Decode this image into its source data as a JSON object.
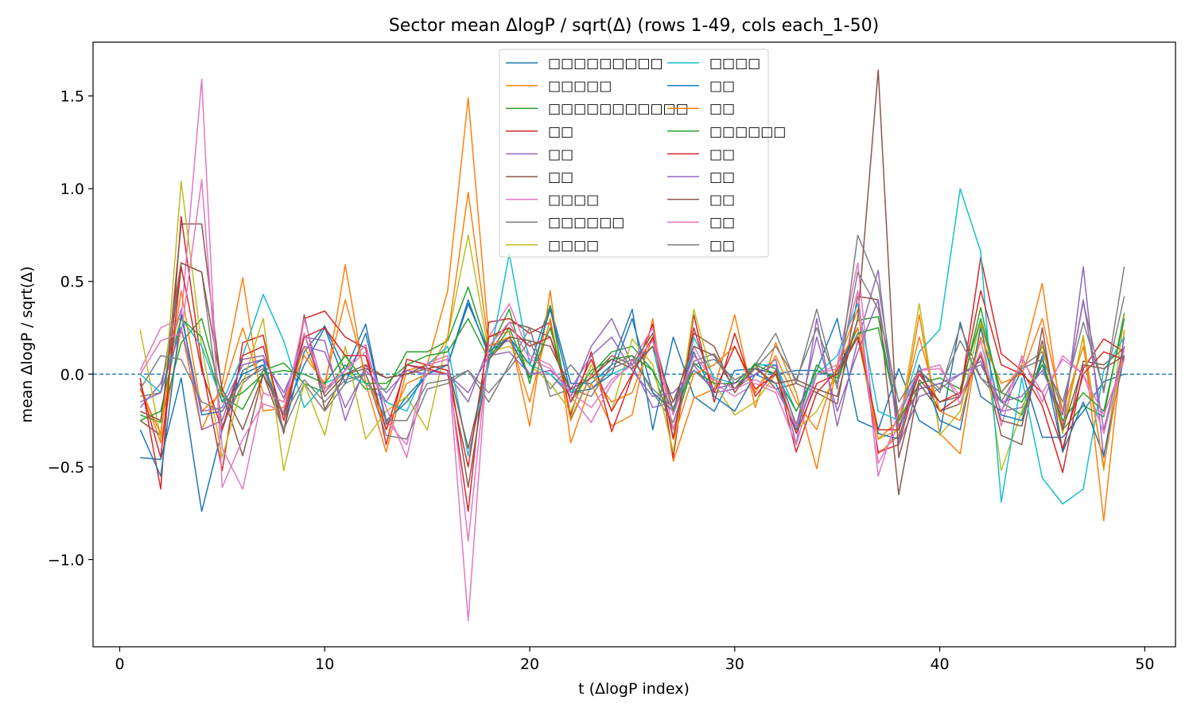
{
  "chart_data": {
    "type": "line",
    "title": "Sector mean ΔlogP / sqrt(Δ) (rows 1-49, cols each_1-50)",
    "xlabel": "t (ΔlogP index)",
    "ylabel": "mean ΔlogP / sqrt(Δ)",
    "xlim": [
      -1.3,
      51.5
    ],
    "ylim": [
      -1.47,
      1.79
    ],
    "xticks": [
      0,
      10,
      20,
      30,
      40,
      50
    ],
    "yticks": [
      -1.0,
      -0.5,
      0.0,
      0.5,
      1.0,
      1.5
    ],
    "ytick_labels": [
      "−1.0",
      "−0.5",
      "0.0",
      "0.5",
      "1.0",
      "1.5"
    ],
    "grid": false,
    "zero_line": true,
    "legend_placement": "top-center",
    "legend_columns": 2,
    "x": [
      1,
      2,
      3,
      4,
      5,
      6,
      7,
      8,
      9,
      10,
      11,
      12,
      13,
      14,
      15,
      16,
      17,
      18,
      19,
      20,
      21,
      22,
      23,
      24,
      25,
      26,
      27,
      28,
      29,
      30,
      31,
      32,
      33,
      34,
      35,
      36,
      37,
      38,
      39,
      40,
      41,
      42,
      43,
      44,
      45,
      46,
      47,
      48,
      49
    ],
    "series": [
      {
        "name": "□□□□□□□□□",
        "color": "#1f77b4",
        "values": [
          -0.45,
          -0.46,
          -0.02,
          -0.74,
          -0.3,
          0.02,
          0.08,
          -0.3,
          0.12,
          0.26,
          0.02,
          0.27,
          -0.27,
          -0.12,
          0.0,
          0.05,
          0.4,
          0.1,
          0.2,
          0.05,
          0.37,
          -0.05,
          -0.05,
          0.05,
          0.35,
          -0.3,
          0.2,
          -0.12,
          -0.2,
          0.02,
          0.03,
          0.0,
          0.02,
          0.02,
          0.3,
          -0.25,
          -0.3,
          0.03,
          -0.25,
          -0.32,
          0.28,
          -0.12,
          -0.2,
          0.02,
          -0.34,
          -0.34,
          -0.2,
          -0.04,
          0.0
        ]
      },
      {
        "name": "□□□□□",
        "color": "#ff7f0e",
        "values": [
          -0.05,
          -0.37,
          0.25,
          -0.3,
          -0.05,
          0.52,
          -0.2,
          -0.18,
          0.15,
          -0.08,
          0.59,
          -0.05,
          -0.42,
          0.02,
          0.05,
          0.45,
          1.49,
          0.2,
          0.23,
          -0.28,
          0.45,
          -0.37,
          -0.05,
          -0.28,
          -0.22,
          0.3,
          -0.47,
          -0.13,
          -0.08,
          0.32,
          -0.18,
          0.17,
          -0.1,
          -0.51,
          0.05,
          0.35,
          -0.43,
          -0.33,
          0.32,
          -0.32,
          -0.43,
          0.27,
          -0.1,
          0.05,
          0.49,
          -0.28,
          0.2,
          -0.79,
          0.24
        ]
      },
      {
        "name": "□□□□□□□□□□□",
        "color": "#2ca02c",
        "values": [
          -0.22,
          -0.26,
          0.17,
          0.3,
          -0.12,
          -0.19,
          0.02,
          0.06,
          -0.05,
          -0.1,
          0.05,
          -0.08,
          -0.08,
          0.12,
          0.12,
          0.18,
          0.47,
          0.12,
          0.35,
          -0.05,
          0.37,
          -0.24,
          0.0,
          0.12,
          0.15,
          0.02,
          -0.3,
          0.06,
          -0.03,
          -0.08,
          0.06,
          0.03,
          -0.27,
          0.05,
          -0.05,
          0.29,
          0.31,
          -0.28,
          -0.08,
          -0.05,
          -0.12,
          0.36,
          -0.15,
          -0.22,
          0.08,
          -0.3,
          -0.17,
          -0.23,
          0.33
        ]
      },
      {
        "name": "□□",
        "color": "#d62728",
        "values": [
          -0.02,
          -0.62,
          0.85,
          0.05,
          -0.52,
          0.17,
          0.21,
          -0.32,
          0.3,
          0.34,
          0.2,
          0.14,
          -0.38,
          0.08,
          0.05,
          0.02,
          -0.74,
          0.28,
          0.3,
          0.22,
          0.28,
          -0.22,
          0.12,
          -0.31,
          -0.01,
          0.27,
          -0.45,
          0.32,
          -0.15,
          0.22,
          -0.12,
          0.02,
          -0.42,
          -0.1,
          0.02,
          0.25,
          -0.42,
          -0.38,
          0.02,
          -0.2,
          -0.12,
          0.63,
          0.11,
          0.02,
          -0.17,
          -0.53,
          0.03,
          0.19,
          0.12
        ]
      },
      {
        "name": "□□",
        "color": "#9467bd",
        "values": [
          -0.18,
          -0.05,
          0.35,
          -0.3,
          -0.25,
          0.08,
          0.1,
          -0.13,
          0.2,
          0.18,
          -0.25,
          0.05,
          -0.15,
          0.05,
          0.02,
          0.0,
          -0.15,
          0.15,
          0.18,
          0.0,
          0.0,
          -0.12,
          0.15,
          0.3,
          0.05,
          -0.18,
          -0.15,
          0.05,
          -0.1,
          -0.08,
          0.0,
          0.08,
          -0.38,
          0.3,
          -0.28,
          0.18,
          0.56,
          -0.38,
          -0.12,
          -0.08,
          0.0,
          0.07,
          -0.2,
          -0.18,
          0.05,
          -0.3,
          0.58,
          -0.45,
          0.2
        ]
      },
      {
        "name": "□□",
        "color": "#8c564b",
        "values": [
          -0.25,
          -0.33,
          0.81,
          0.81,
          -0.1,
          -0.44,
          0.0,
          -0.31,
          0.32,
          -0.19,
          0.0,
          0.05,
          -0.02,
          0.0,
          0.05,
          0.08,
          -0.61,
          0.1,
          0.28,
          0.25,
          0.2,
          -0.1,
          -0.02,
          0.1,
          0.05,
          0.22,
          -0.2,
          0.22,
          0.15,
          -0.1,
          0.05,
          -0.08,
          -0.05,
          -0.1,
          -0.16,
          0.42,
          0.4,
          -0.65,
          -0.05,
          -0.2,
          -0.16,
          0.12,
          -0.33,
          -0.38,
          0.25,
          -0.42,
          0.07,
          0.05,
          0.14
        ]
      },
      {
        "name": "□□□□",
        "color": "#e377c2",
        "values": [
          0.02,
          0.25,
          0.3,
          1.59,
          -0.61,
          -0.35,
          -0.16,
          -0.2,
          0.3,
          -0.1,
          0.02,
          0.16,
          -0.25,
          -0.38,
          0.06,
          0.1,
          -1.33,
          0.2,
          0.38,
          0.1,
          0.05,
          -0.12,
          -0.26,
          -0.05,
          0.07,
          0.25,
          -0.3,
          0.15,
          -0.05,
          -0.12,
          -0.05,
          -0.1,
          -0.38,
          0.0,
          0.05,
          0.6,
          -0.48,
          -0.28,
          0.02,
          0.05,
          -0.16,
          0.18,
          -0.28,
          0.1,
          -0.15,
          0.1,
          0.0,
          -0.32,
          0.1
        ]
      },
      {
        "name": "□□□□□□",
        "color": "#7f7f7f",
        "values": [
          -0.12,
          -0.1,
          0.6,
          0.55,
          -0.28,
          -0.05,
          0.05,
          -0.3,
          -0.05,
          -0.2,
          -0.05,
          0.0,
          -0.33,
          -0.35,
          -0.08,
          -0.05,
          0.02,
          -0.15,
          0.05,
          0.25,
          -0.12,
          -0.08,
          -0.12,
          0.05,
          0.1,
          -0.1,
          -0.26,
          0.07,
          0.11,
          -0.05,
          0.05,
          0.22,
          -0.05,
          0.35,
          -0.08,
          0.75,
          0.48,
          -0.23,
          0.02,
          -0.1,
          0.26,
          -0.02,
          -0.15,
          0.04,
          0.12,
          -0.2,
          0.39,
          -0.1,
          0.58
        ]
      },
      {
        "name": "□□□□",
        "color": "#bcbd22",
        "values": [
          0.24,
          -0.35,
          1.04,
          0.15,
          -0.45,
          -0.05,
          0.3,
          -0.52,
          -0.05,
          -0.33,
          0.15,
          -0.35,
          -0.2,
          -0.12,
          -0.3,
          0.2,
          0.75,
          0.12,
          0.15,
          0.05,
          -0.05,
          -0.2,
          0.05,
          -0.2,
          0.19,
          0.05,
          -0.42,
          0.35,
          -0.05,
          -0.22,
          -0.15,
          0.0,
          -0.3,
          -0.2,
          0.0,
          0.2,
          -0.35,
          -0.3,
          0.38,
          -0.33,
          -0.2,
          0.3,
          -0.52,
          -0.2,
          0.15,
          -0.32,
          0.21,
          -0.52,
          0.32
        ]
      },
      {
        "name": "□□□□",
        "color": "#17becf",
        "values": [
          0.0,
          -0.1,
          0.3,
          0.15,
          -0.15,
          0.1,
          0.43,
          0.18,
          -0.18,
          -0.05,
          0.0,
          -0.05,
          -0.15,
          -0.2,
          0.05,
          0.15,
          -0.44,
          0.05,
          0.65,
          0.05,
          0.0,
          -0.1,
          -0.02,
          0.0,
          0.05,
          0.15,
          -0.34,
          0.2,
          -0.02,
          -0.05,
          0.05,
          0.05,
          -0.2,
          0.0,
          0.1,
          0.38,
          -0.2,
          -0.25,
          0.12,
          0.24,
          1.0,
          0.66,
          -0.69,
          -0.02,
          -0.56,
          -0.7,
          -0.62,
          0.02,
          0.2
        ]
      },
      {
        "name": "□□",
        "color": "#1f77b4",
        "values": [
          -0.3,
          -0.55,
          0.32,
          -0.22,
          -0.2,
          0.0,
          0.05,
          -0.22,
          0.05,
          0.25,
          -0.05,
          0.22,
          -0.25,
          -0.15,
          0.0,
          0.05,
          0.38,
          0.12,
          0.2,
          -0.02,
          0.35,
          -0.1,
          -0.08,
          0.0,
          0.3,
          -0.1,
          -0.2,
          0.12,
          -0.12,
          -0.2,
          0.0,
          -0.05,
          -0.3,
          0.0,
          0.0,
          0.25,
          -0.32,
          -0.35,
          0.05,
          -0.25,
          -0.3,
          0.25,
          -0.22,
          -0.25,
          0.1,
          -0.42,
          -0.15,
          -0.44,
          0.1
        ]
      },
      {
        "name": "□□",
        "color": "#ff7f0e",
        "values": [
          -0.08,
          -0.32,
          0.45,
          -0.2,
          -0.1,
          0.25,
          -0.1,
          -0.15,
          0.1,
          -0.05,
          0.4,
          0.0,
          -0.3,
          -0.05,
          0.0,
          0.2,
          0.98,
          0.15,
          0.2,
          -0.15,
          0.3,
          -0.25,
          0.0,
          -0.15,
          -0.1,
          0.2,
          -0.35,
          0.0,
          0.05,
          0.15,
          -0.1,
          0.1,
          -0.15,
          -0.3,
          0.05,
          0.25,
          -0.35,
          -0.25,
          0.2,
          -0.2,
          -0.25,
          0.2,
          -0.05,
          0.0,
          0.3,
          -0.2,
          0.15,
          -0.5,
          0.15
        ]
      },
      {
        "name": "□□□□□□",
        "color": "#2ca02c",
        "values": [
          -0.25,
          -0.2,
          0.3,
          0.2,
          -0.15,
          -0.1,
          0.0,
          0.02,
          0.0,
          -0.05,
          0.1,
          -0.05,
          -0.05,
          0.05,
          0.1,
          0.12,
          0.3,
          0.08,
          0.25,
          -0.02,
          0.25,
          -0.15,
          0.02,
          0.08,
          0.1,
          0.02,
          -0.2,
          0.02,
          -0.05,
          -0.05,
          0.05,
          0.0,
          -0.2,
          0.02,
          -0.02,
          0.22,
          0.25,
          -0.25,
          -0.05,
          -0.02,
          -0.08,
          0.3,
          -0.1,
          -0.15,
          0.05,
          -0.25,
          -0.1,
          -0.2,
          0.3
        ]
      },
      {
        "name": "□□",
        "color": "#d62728",
        "values": [
          -0.05,
          -0.45,
          0.58,
          0.02,
          -0.3,
          0.1,
          0.15,
          -0.25,
          0.2,
          0.25,
          0.1,
          0.1,
          -0.3,
          0.05,
          0.03,
          0.0,
          -0.5,
          0.2,
          0.25,
          0.15,
          0.2,
          -0.15,
          0.08,
          -0.2,
          0.0,
          0.2,
          -0.35,
          0.25,
          -0.1,
          0.15,
          -0.08,
          0.0,
          -0.32,
          -0.05,
          0.0,
          0.2,
          -0.3,
          -0.3,
          0.0,
          -0.15,
          -0.1,
          0.45,
          0.05,
          0.0,
          -0.1,
          -0.4,
          0.0,
          0.12,
          0.08
        ]
      },
      {
        "name": "□□",
        "color": "#9467bd",
        "values": [
          -0.15,
          -0.1,
          0.25,
          -0.2,
          -0.18,
          0.05,
          0.08,
          -0.1,
          0.15,
          0.12,
          -0.18,
          0.02,
          -0.1,
          0.02,
          0.0,
          0.0,
          -0.1,
          0.1,
          0.12,
          0.0,
          0.02,
          -0.08,
          0.1,
          0.2,
          0.02,
          -0.12,
          -0.1,
          0.02,
          -0.08,
          -0.05,
          0.0,
          0.05,
          -0.28,
          0.2,
          -0.2,
          0.12,
          0.4,
          -0.28,
          -0.08,
          -0.05,
          0.0,
          0.05,
          -0.15,
          -0.12,
          0.02,
          -0.22,
          0.4,
          -0.3,
          0.15
        ]
      },
      {
        "name": "□□",
        "color": "#8c564b",
        "values": [
          -0.2,
          -0.25,
          0.6,
          0.55,
          -0.08,
          -0.3,
          0.0,
          -0.22,
          0.22,
          -0.12,
          0.0,
          0.03,
          -0.02,
          0.0,
          0.03,
          0.05,
          -0.4,
          0.08,
          0.2,
          0.18,
          0.15,
          -0.08,
          -0.02,
          0.08,
          0.03,
          0.15,
          -0.15,
          0.15,
          0.1,
          -0.08,
          0.03,
          -0.05,
          -0.03,
          -0.08,
          -0.12,
          0.3,
          1.64,
          -0.45,
          -0.03,
          -0.15,
          -0.12,
          0.1,
          -0.25,
          -0.28,
          0.18,
          -0.3,
          0.05,
          0.03,
          0.1
        ]
      },
      {
        "name": "□□",
        "color": "#e377c2",
        "values": [
          0.0,
          0.18,
          0.22,
          1.05,
          -0.4,
          -0.62,
          -0.1,
          -0.15,
          0.22,
          -0.08,
          0.02,
          0.12,
          -0.18,
          -0.45,
          0.05,
          0.08,
          -0.9,
          0.15,
          0.28,
          0.08,
          0.03,
          -0.1,
          -0.18,
          -0.03,
          0.05,
          0.18,
          -0.22,
          0.1,
          -0.03,
          -0.08,
          -0.03,
          -0.08,
          -0.28,
          0.0,
          0.03,
          0.45,
          -0.55,
          -0.2,
          0.02,
          0.03,
          -0.12,
          0.12,
          -0.2,
          0.08,
          -0.1,
          0.08,
          0.0,
          -0.22,
          0.08
        ]
      },
      {
        "name": "□□",
        "color": "#7f7f7f",
        "values": [
          -0.08,
          0.1,
          0.08,
          -0.15,
          -0.2,
          -0.03,
          0.03,
          -0.22,
          -0.03,
          -0.15,
          -0.03,
          0.0,
          -0.25,
          -0.25,
          -0.05,
          -0.03,
          0.02,
          -0.1,
          0.03,
          0.18,
          -0.08,
          0.05,
          -0.08,
          0.03,
          0.08,
          -0.08,
          -0.18,
          0.05,
          0.08,
          -0.03,
          0.03,
          0.15,
          -0.03,
          0.25,
          -0.05,
          0.55,
          0.35,
          -0.15,
          0.02,
          -0.08,
          0.18,
          -0.02,
          -0.1,
          0.03,
          0.08,
          -0.15,
          0.28,
          -0.08,
          0.42
        ]
      }
    ]
  }
}
